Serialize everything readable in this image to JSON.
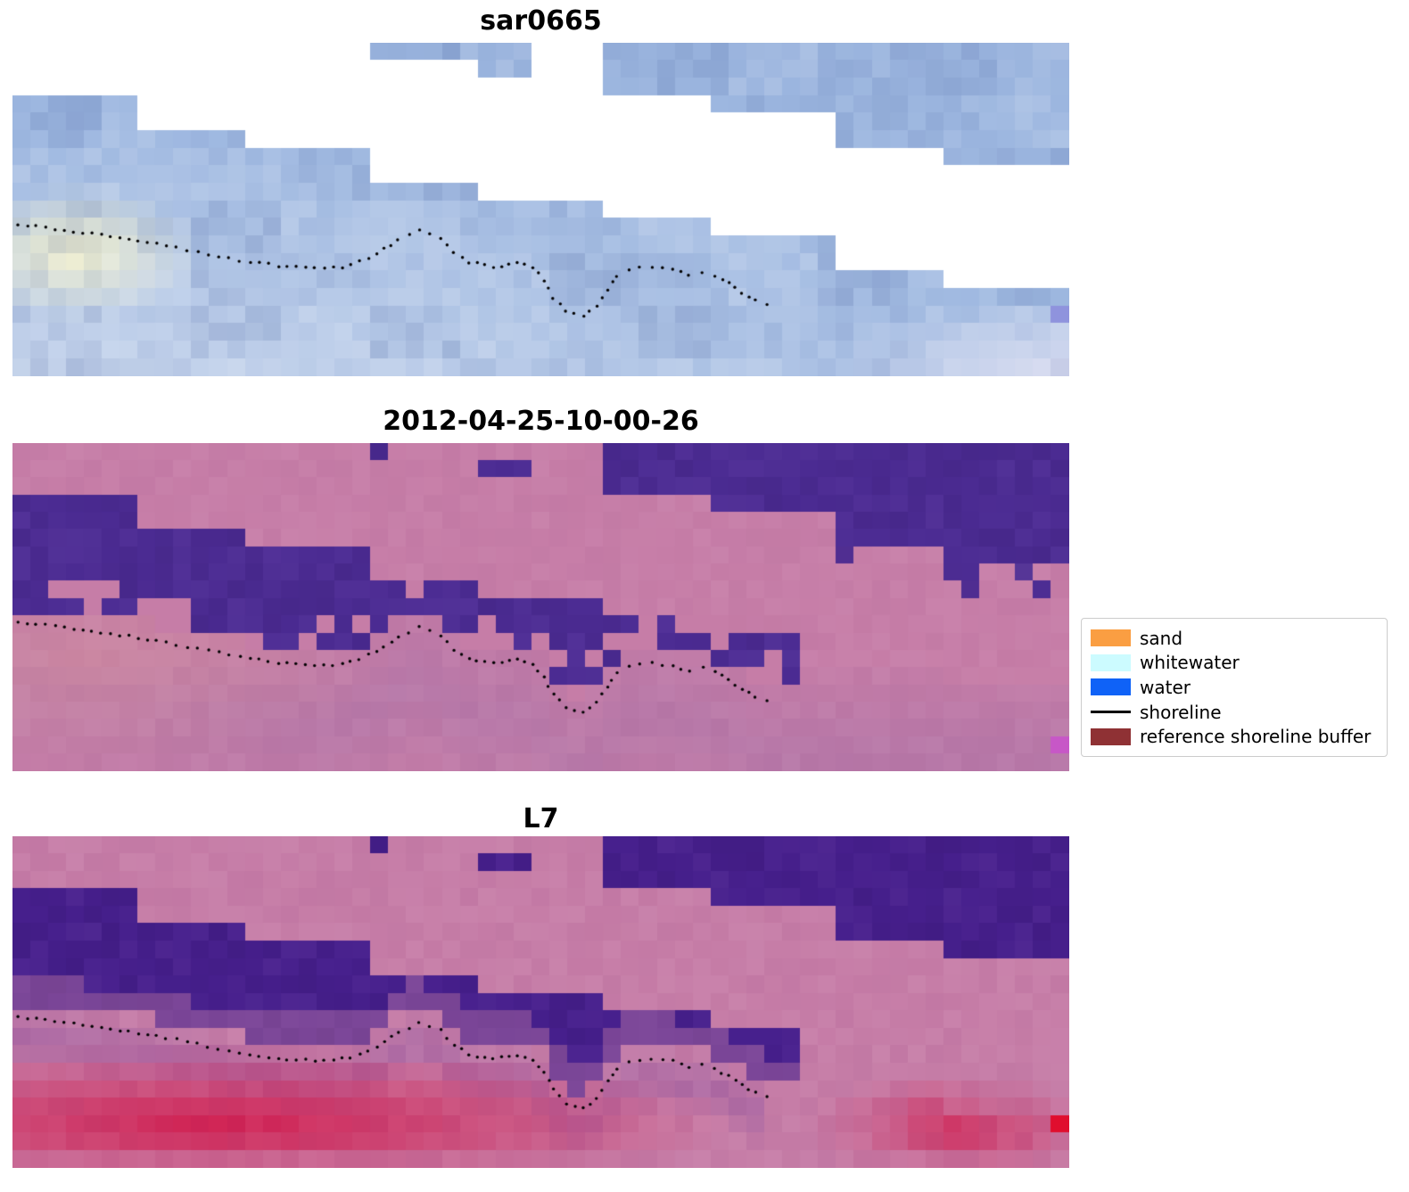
{
  "figure_bg": "#ffffff",
  "panels": [
    {
      "title": "sar0665"
    },
    {
      "title": "2012-04-25-10-00-26"
    },
    {
      "title": "L7"
    }
  ],
  "legend": {
    "items": [
      {
        "label": "sand",
        "color": "#fa9e42",
        "kind": "patch"
      },
      {
        "label": "whitewater",
        "color": "#ccfbff",
        "kind": "patch"
      },
      {
        "label": "water",
        "color": "#0f62f7",
        "kind": "patch"
      },
      {
        "label": "shoreline",
        "color": "#000000",
        "kind": "line"
      },
      {
        "label": "reference shoreline buffer",
        "color": "#8f3134",
        "kind": "patch"
      }
    ]
  },
  "chart_data": {
    "type": "heatmap",
    "description": "Three stacked pixelated raster panels of the same coastal scene: a SAR backscatter image (sar0665), a classified satellite image dated 2012-04-25-10-00-26, and an L7 classified image. Diagonal stepped no-data stripes cross each panel; a dotted black detected shoreline is overlaid on all three.",
    "panel_titles": [
      "sar0665",
      "2012-04-25-10-00-26",
      "L7"
    ],
    "legend_entries": [
      "sand",
      "whitewater",
      "water",
      "shoreline",
      "reference shoreline buffer"
    ],
    "shoreline_points": [
      [
        0.005,
        0.545
      ],
      [
        0.04,
        0.557
      ],
      [
        0.075,
        0.572
      ],
      [
        0.11,
        0.588
      ],
      [
        0.145,
        0.607
      ],
      [
        0.185,
        0.633
      ],
      [
        0.225,
        0.658
      ],
      [
        0.26,
        0.672
      ],
      [
        0.295,
        0.678
      ],
      [
        0.32,
        0.668
      ],
      [
        0.345,
        0.634
      ],
      [
        0.365,
        0.59
      ],
      [
        0.385,
        0.562
      ],
      [
        0.405,
        0.585
      ],
      [
        0.418,
        0.63
      ],
      [
        0.432,
        0.658
      ],
      [
        0.455,
        0.672
      ],
      [
        0.478,
        0.66
      ],
      [
        0.492,
        0.672
      ],
      [
        0.503,
        0.713
      ],
      [
        0.512,
        0.765
      ],
      [
        0.524,
        0.805
      ],
      [
        0.54,
        0.82
      ],
      [
        0.553,
        0.792
      ],
      [
        0.563,
        0.74
      ],
      [
        0.572,
        0.7
      ],
      [
        0.583,
        0.678
      ],
      [
        0.605,
        0.672
      ],
      [
        0.625,
        0.678
      ],
      [
        0.64,
        0.694
      ],
      [
        0.653,
        0.686
      ],
      [
        0.665,
        0.7
      ],
      [
        0.678,
        0.722
      ],
      [
        0.69,
        0.748
      ],
      [
        0.703,
        0.773
      ],
      [
        0.714,
        0.785
      ]
    ],
    "nodata_stripe": {
      "slope": 0.64,
      "half_width": 0.183,
      "steps": 9,
      "center_intercept": -0.005
    },
    "palette": {
      "nodata": "#ffffff",
      "sar_base": "#9db7e0",
      "sar_bright_spot": "#f8f4cc",
      "sar_light": "#e8edf6",
      "class_pink": "#c67da7",
      "class_purple": "#4b2b92",
      "l7_purple": "#461f8c",
      "l7_red": "#d1194b",
      "land_mauve": "#a671a8",
      "land_salmon": "#d68f9c"
    }
  }
}
